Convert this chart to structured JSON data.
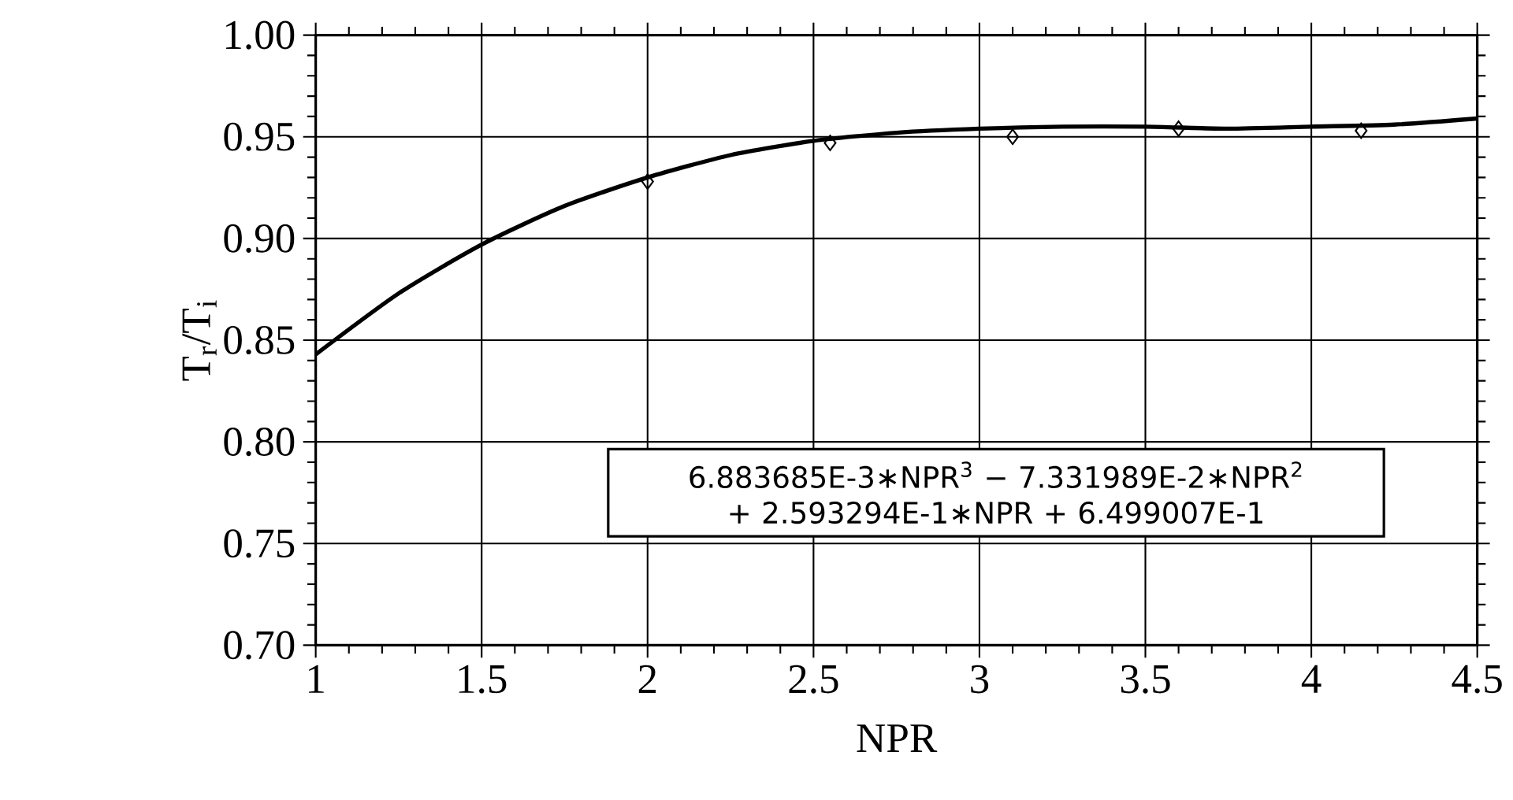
{
  "chart_data": {
    "type": "scatter",
    "xlabel": "NPR",
    "ylabel": "T$_{r}$/T$_{i}$",
    "xlim": [
      1,
      4.5
    ],
    "xticks": [
      1,
      1.5,
      2,
      2.5,
      3,
      3.5,
      4,
      4.5
    ],
    "ylim": [
      0.7,
      1.0
    ],
    "yticks": [
      {
        "value": 0.7,
        "label": "0.70"
      },
      0.75,
      {
        "value": 0.8,
        "label": "0.80"
      },
      0.85,
      {
        "value": 0.9,
        "label": "0.90"
      },
      0.95,
      {
        "value": 1.0,
        "label": "1.00"
      }
    ],
    "grid": true,
    "series": [
      {
        "marker": "diamond",
        "color": "#000000",
        "x": [
          2,
          2.55,
          3.1,
          3.6,
          4.15
        ],
        "values": [
          0.928,
          0.947,
          0.95,
          0.954,
          0.953
        ]
      },
      {
        "type": "line",
        "marker": "none",
        "color": "#000000",
        "x": [
          1,
          1.25,
          1.5,
          1.75,
          2,
          2.25,
          2.5,
          2.75,
          3,
          3.25,
          3.5,
          3.75,
          4,
          4.25,
          4.5
        ],
        "values": [
          0.843,
          0.873,
          0.897,
          0.916,
          0.93,
          0.941,
          0.948,
          0.952,
          0.954,
          0.955,
          0.955,
          0.954,
          0.955,
          0.956,
          0.959
        ]
      }
    ],
    "annotations": [
      "6.883685E-3∗NPR$^{3}$ − 7.331989E-2∗NPR$^{2}$ + 2.593294E-1∗NPR + 6.499007E-1"
    ]
  }
}
